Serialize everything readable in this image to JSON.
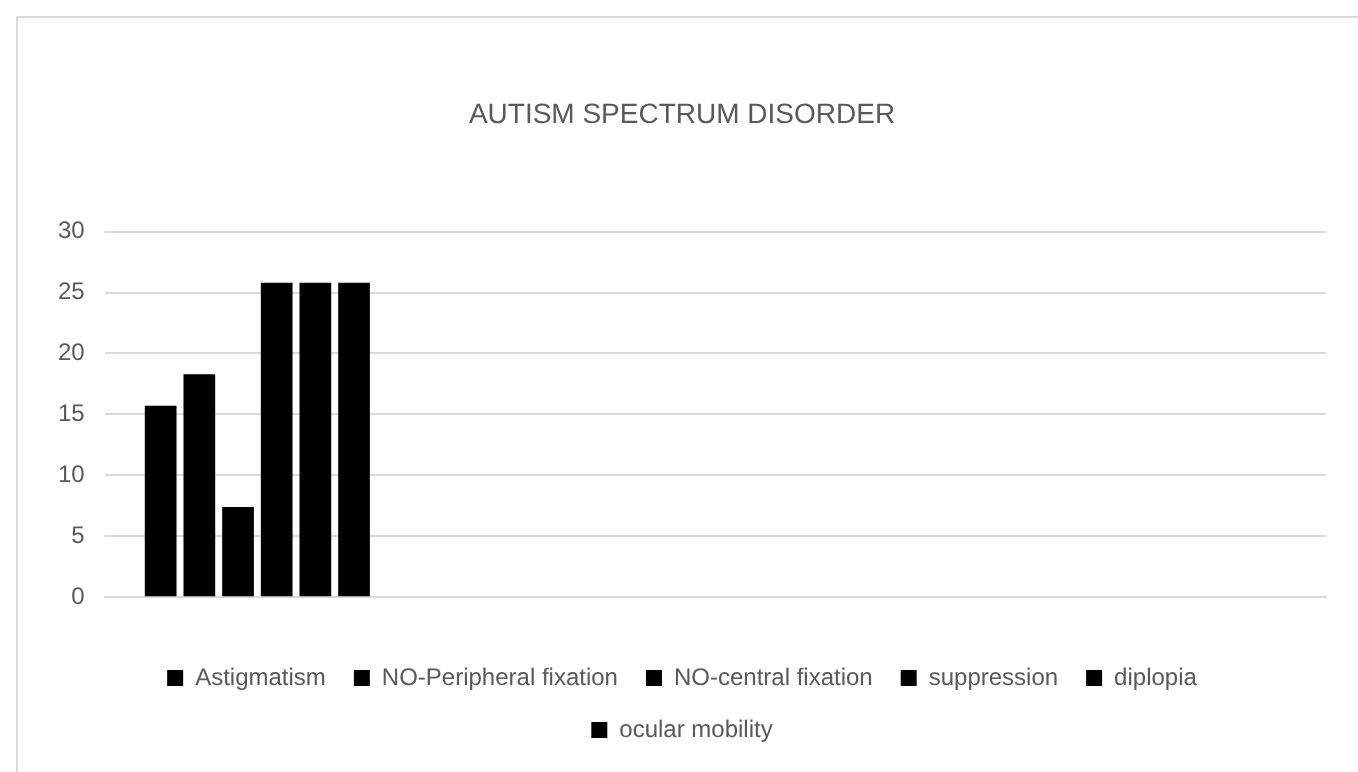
{
  "chart_data": {
    "type": "bar",
    "title": "AUTISM SPECTRUM DISORDER",
    "categories": [
      null,
      null,
      null,
      null
    ],
    "series": [
      {
        "name": "Astigmatism",
        "color": "#000000",
        "values": [
          15.7,
          null,
          null,
          null
        ]
      },
      {
        "name": "NO-Peripheral fixation",
        "color": "#000000",
        "values": [
          18.3,
          null,
          null,
          null
        ]
      },
      {
        "name": "NO-central fixation",
        "color": "#000000",
        "values": [
          7.4,
          null,
          null,
          null
        ]
      },
      {
        "name": "suppression",
        "color": "#000000",
        "values": [
          25.8,
          null,
          null,
          null
        ]
      },
      {
        "name": "diplopia",
        "color": "#000000",
        "values": [
          25.8,
          null,
          null,
          null
        ]
      },
      {
        "name": "ocular mobility",
        "color": "#000000",
        "values": [
          25.8,
          null,
          null,
          null
        ]
      }
    ],
    "ylim": [
      0,
      30
    ],
    "yticks": [
      0,
      5,
      10,
      15,
      20,
      25,
      30
    ],
    "grid": "y",
    "legend": "bottom"
  }
}
